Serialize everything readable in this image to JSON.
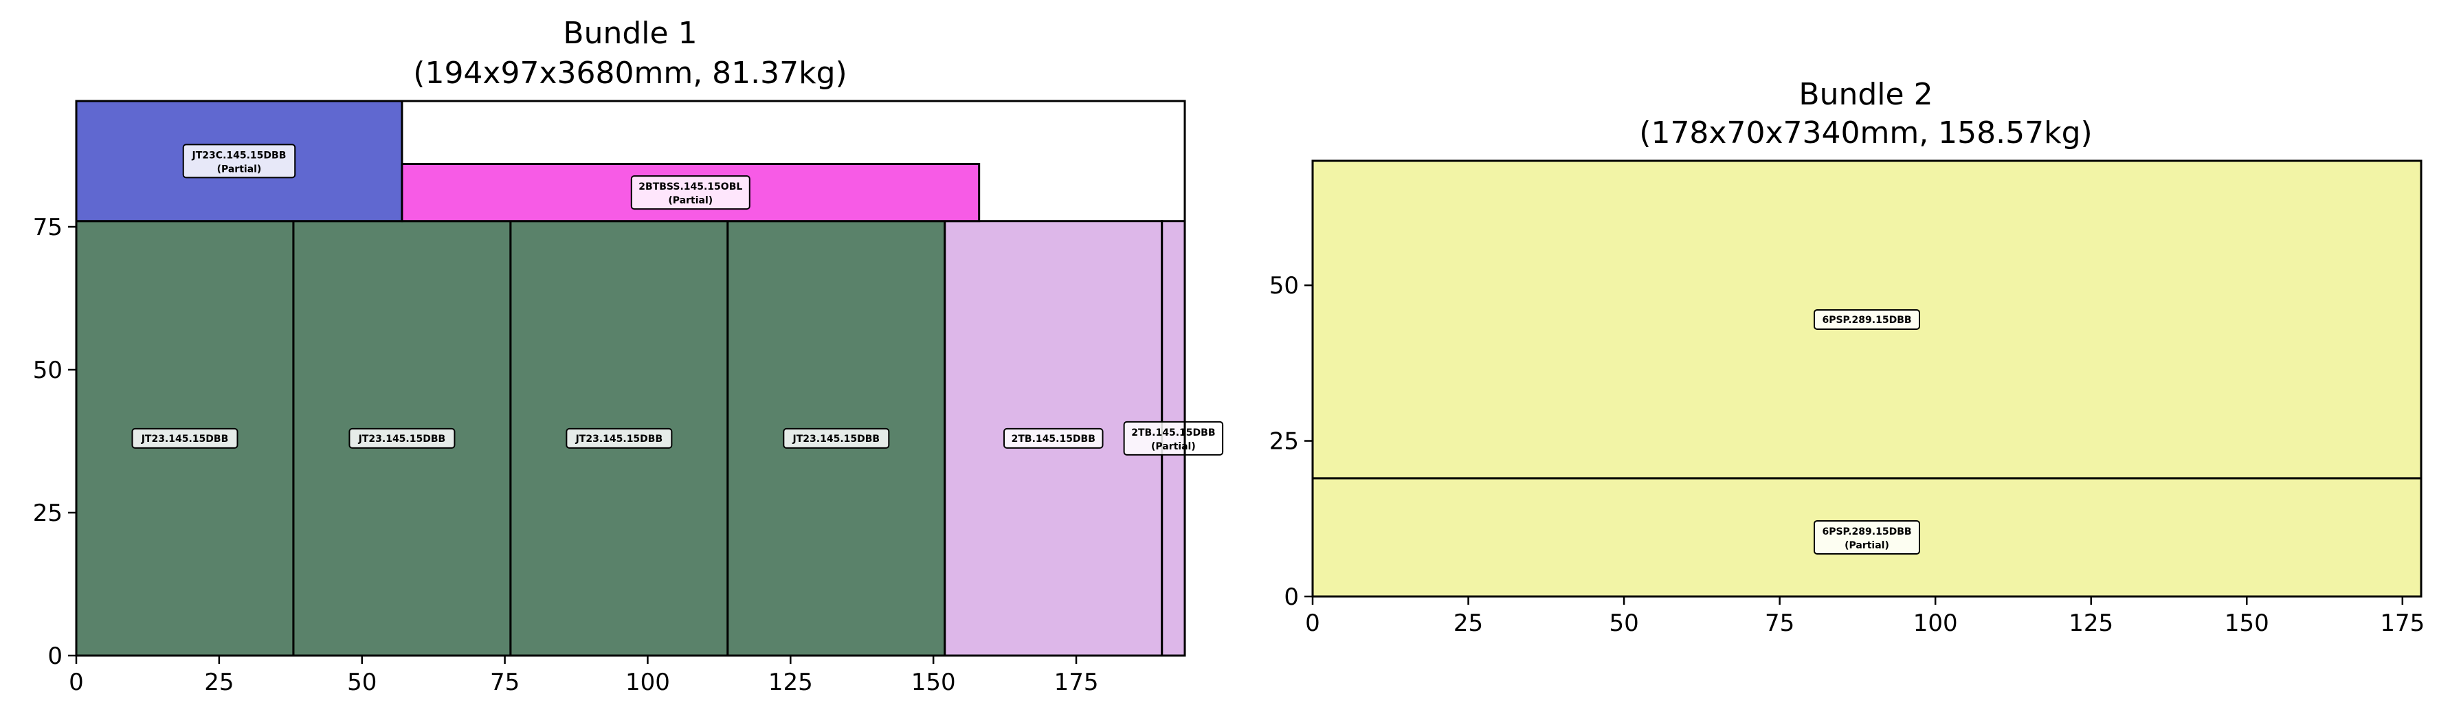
{
  "chart_data": [
    {
      "type": "bar",
      "title": "Bundle 1",
      "subtitle": "(194x97x3680mm, 81.37kg)",
      "xlim": [
        0,
        194
      ],
      "ylim": [
        0,
        97
      ],
      "xticks": [
        0,
        25,
        50,
        75,
        100,
        125,
        150,
        175
      ],
      "yticks": [
        0,
        25,
        50,
        75
      ],
      "grid": false,
      "pieces": [
        {
          "label": "JT23.145.15DBB",
          "partial": false,
          "x": 0,
          "y": 0,
          "w": 38,
          "h": 76,
          "color": "#5a826a"
        },
        {
          "label": "JT23.145.15DBB",
          "partial": false,
          "x": 38,
          "y": 0,
          "w": 38,
          "h": 76,
          "color": "#5a826a"
        },
        {
          "label": "JT23.145.15DBB",
          "partial": false,
          "x": 76,
          "y": 0,
          "w": 38,
          "h": 76,
          "color": "#5a826a"
        },
        {
          "label": "JT23.145.15DBB",
          "partial": false,
          "x": 114,
          "y": 0,
          "w": 38,
          "h": 76,
          "color": "#5a826a"
        },
        {
          "label": "2TB.145.15DBB",
          "partial": false,
          "x": 152,
          "y": 0,
          "w": 38,
          "h": 76,
          "color": "#ddb7e9"
        },
        {
          "label": "2TB.145.15DBB",
          "partial": true,
          "x": 190,
          "y": 0,
          "w": 4,
          "h": 76,
          "color": "#ddb7e9"
        },
        {
          "label": "JT23C.145.15DBB",
          "partial": true,
          "x": 0,
          "y": 76,
          "w": 57,
          "h": 21,
          "color": "#6068d0"
        },
        {
          "label": "2BTBSS.145.15OBL",
          "partial": true,
          "x": 57,
          "y": 76,
          "w": 101,
          "h": 10,
          "color": "#f75be6"
        }
      ]
    },
    {
      "type": "bar",
      "title": "Bundle 2",
      "subtitle": "(178x70x7340mm, 158.57kg)",
      "xlim": [
        0,
        178
      ],
      "ylim": [
        0,
        70
      ],
      "xticks": [
        0,
        25,
        50,
        75,
        100,
        125,
        150,
        175
      ],
      "yticks": [
        0,
        25,
        50
      ],
      "grid": false,
      "pieces": [
        {
          "label": "6PSP.289.15DBB",
          "partial": true,
          "x": 0,
          "y": 0,
          "w": 178,
          "h": 19,
          "color": "#f2f4a6"
        },
        {
          "label": "6PSP.289.15DBB",
          "partial": false,
          "x": 0,
          "y": 19,
          "w": 178,
          "h": 51,
          "color": "#f2f4a6"
        }
      ]
    }
  ],
  "partial_text": "(Partial)"
}
